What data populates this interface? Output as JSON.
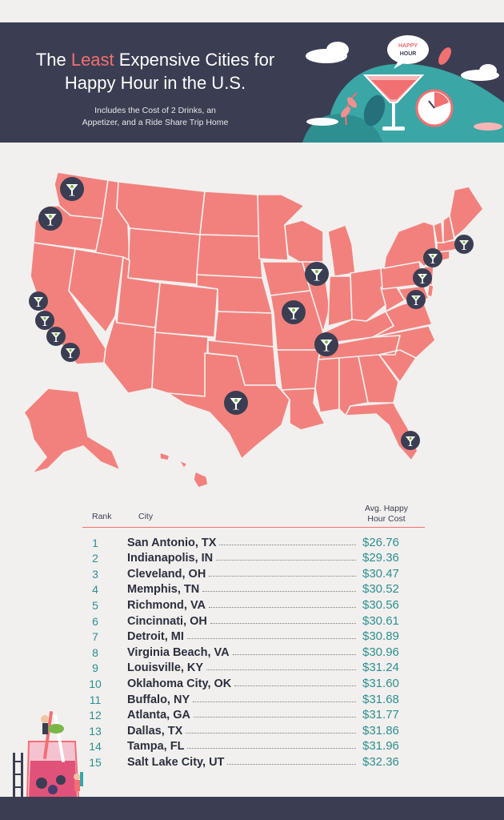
{
  "header": {
    "title_pre": "The ",
    "title_highlight": "Least",
    "title_post": " Expensive Cities for",
    "title_line2": "Happy Hour in the U.S.",
    "subtitle_line1": "Includes the Cost of 2 Drinks, an",
    "subtitle_line2": "Appetizer, and a Ride Share Trip Home",
    "bubble_line1": "HAPPY",
    "bubble_line2": "HOUR"
  },
  "colors": {
    "navy": "#3b3e52",
    "coral": "#f26f72",
    "teal": "#2f8f8f",
    "state_fill": "#f2817d"
  },
  "map": {
    "marker_icon": "martini-glass-icon"
  },
  "table": {
    "headers": {
      "rank": "Rank",
      "city": "City",
      "cost_line1": "Avg. Happy",
      "cost_line2": "Hour Cost"
    },
    "rows": [
      {
        "rank": "1",
        "city": "San Antonio, TX",
        "cost": "$26.76"
      },
      {
        "rank": "2",
        "city": "Indianapolis, IN",
        "cost": "$29.36"
      },
      {
        "rank": "3",
        "city": "Cleveland, OH",
        "cost": "$30.47"
      },
      {
        "rank": "4",
        "city": "Memphis, TN",
        "cost": "$30.52"
      },
      {
        "rank": "5",
        "city": "Richmond, VA",
        "cost": "$30.56"
      },
      {
        "rank": "6",
        "city": "Cincinnati, OH",
        "cost": "$30.61"
      },
      {
        "rank": "7",
        "city": "Detroit, MI",
        "cost": "$30.89"
      },
      {
        "rank": "8",
        "city": "Virginia Beach, VA",
        "cost": "$30.96"
      },
      {
        "rank": "9",
        "city": "Louisville, KY",
        "cost": "$31.24"
      },
      {
        "rank": "10",
        "city": "Oklahoma City, OK",
        "cost": "$31.60"
      },
      {
        "rank": "11",
        "city": "Buffalo, NY",
        "cost": "$31.68"
      },
      {
        "rank": "12",
        "city": "Atlanta, GA",
        "cost": "$31.77"
      },
      {
        "rank": "13",
        "city": "Dallas, TX",
        "cost": "$31.86"
      },
      {
        "rank": "14",
        "city": "Tampa, FL",
        "cost": "$31.96"
      },
      {
        "rank": "15",
        "city": "Salt Lake City, UT",
        "cost": "$32.36"
      }
    ]
  }
}
